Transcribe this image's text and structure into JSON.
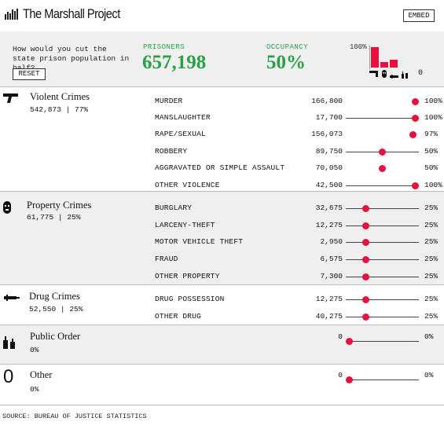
{
  "header": {
    "title": "The Marshall Project",
    "embed_label": "EMBED"
  },
  "controls": {
    "question": "How would you cut the state prison population in half?",
    "reset_label": "RESET",
    "prisoners_label": "PRISONERS",
    "prisoners_value": "657,198",
    "occupancy_label": "OCCUPANCY",
    "occupancy_value": "50%",
    "mini_chart_label": "100%",
    "mini_chart_other": "0",
    "mini_chart_levels": [
      1.0,
      0.25,
      0.4,
      0.0,
      0.0
    ]
  },
  "colors": {
    "accent_green": "#2aa145",
    "dot_red": "#e8103d",
    "mini_bar_red": "#e8103d"
  },
  "categories": [
    {
      "title": "Violent Crimes",
      "count": "542,873",
      "pct": "77%",
      "icon": "gun-icon",
      "items": [
        {
          "label": "MURDER",
          "value": "166,800",
          "pct": "100%",
          "level": 1.0,
          "track": false
        },
        {
          "label": "MANSLAUGHTER",
          "value": "17,700",
          "pct": "100%",
          "level": 1.0,
          "track": true
        },
        {
          "label": "RAPE/SEXUAL",
          "value": "156,073",
          "pct": "97%",
          "level": 0.97,
          "track": false
        },
        {
          "label": "ROBBERY",
          "value": "89,750",
          "pct": "50%",
          "level": 0.5,
          "track": true
        },
        {
          "label": "AGGRAVATED OR SIMPLE ASSAULT",
          "value": "70,050",
          "pct": "50%",
          "level": 0.5,
          "track": false
        },
        {
          "label": "OTHER VIOLENCE",
          "value": "42,500",
          "pct": "100%",
          "level": 1.0,
          "track": true
        }
      ]
    },
    {
      "title": "Property Crimes",
      "count": "61,775",
      "pct": "25%",
      "icon": "ski-mask-icon",
      "items": [
        {
          "label": "BURGLARY",
          "value": "32,675",
          "pct": "25%",
          "level": 0.25,
          "track": true
        },
        {
          "label": "LARCENY-THEFT",
          "value": "12,275",
          "pct": "25%",
          "level": 0.25,
          "track": true
        },
        {
          "label": "MOTOR VEHICLE THEFT",
          "value": "2,950",
          "pct": "25%",
          "level": 0.25,
          "track": true
        },
        {
          "label": "FRAUD",
          "value": "6,575",
          "pct": "25%",
          "level": 0.25,
          "track": true
        },
        {
          "label": "OTHER PROPERTY",
          "value": "7,300",
          "pct": "25%",
          "level": 0.25,
          "track": true
        }
      ]
    },
    {
      "title": "Drug Crimes",
      "count": "52,550",
      "pct": "25%",
      "icon": "syringe-icon",
      "items": [
        {
          "label": "DRUG POSSESSION",
          "value": "12,275",
          "pct": "25%",
          "level": 0.25,
          "track": true
        },
        {
          "label": "OTHER DRUG",
          "value": "40,275",
          "pct": "25%",
          "level": 0.25,
          "track": true
        }
      ]
    },
    {
      "title": "Public Order",
      "count": "",
      "pct": "0%",
      "icon": "bottles-icon",
      "items": [
        {
          "label": "",
          "value": "0",
          "pct": "0%",
          "level": 0.0,
          "track": true
        }
      ]
    },
    {
      "title": "Other",
      "count": "",
      "pct": "0%",
      "icon": "zero-icon",
      "items": [
        {
          "label": "",
          "value": "0",
          "pct": "0%",
          "level": 0.0,
          "track": true
        }
      ]
    }
  ],
  "footer": {
    "source": "SOURCE: BUREAU OF JUSTICE STATISTICS"
  }
}
